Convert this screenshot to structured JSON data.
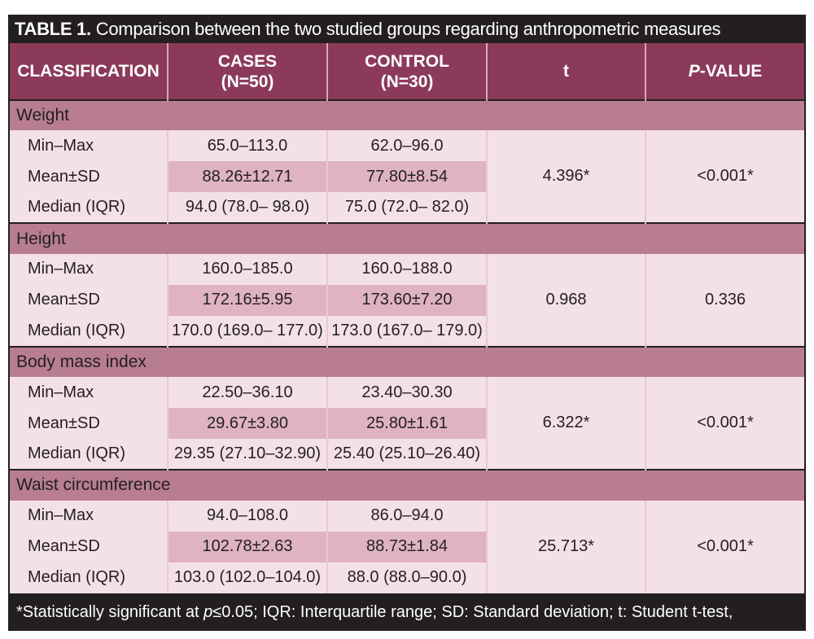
{
  "title": {
    "label": "TABLE 1.",
    "text": "Comparison between the two studied groups regarding anthropometric measures"
  },
  "header": {
    "classification": "CLASSIFICATION",
    "cases": "CASES",
    "cases_n": "(N=50)",
    "control": "CONTROL",
    "control_n": "(N=30)",
    "t": "t",
    "p_italic": "P",
    "p_rest": "-VALUE"
  },
  "sections": [
    {
      "name": "Weight",
      "t": "4.396*",
      "p": "<0.001*",
      "rows": [
        {
          "label": "Min–Max",
          "cases": "65.0–113.0",
          "control": "62.0–96.0"
        },
        {
          "label": "Mean±SD",
          "cases": "88.26±12.71",
          "control": "77.80±8.54"
        },
        {
          "label": "Median (IQR)",
          "cases": "94.0 (78.0– 98.0)",
          "control": "75.0 (72.0– 82.0)"
        }
      ]
    },
    {
      "name": "Height",
      "t": "0.968",
      "p": "0.336",
      "rows": [
        {
          "label": "Min–Max",
          "cases": "160.0–185.0",
          "control": "160.0–188.0"
        },
        {
          "label": "Mean±SD",
          "cases": "172.16±5.95",
          "control": "173.60±7.20"
        },
        {
          "label": "Median (IQR)",
          "cases": "170.0 (169.0– 177.0)",
          "control": "173.0 (167.0– 179.0)"
        }
      ]
    },
    {
      "name": "Body mass index",
      "t": "6.322*",
      "p": "<0.001*",
      "rows": [
        {
          "label": "Min–Max",
          "cases": "22.50–36.10",
          "control": "23.40–30.30"
        },
        {
          "label": "Mean±SD",
          "cases": "29.67±3.80",
          "control": "25.80±1.61"
        },
        {
          "label": "Median (IQR)",
          "cases": "29.35 (27.10–32.90)",
          "control": "25.40 (25.10–26.40)"
        }
      ]
    },
    {
      "name": "Waist circumference",
      "t": "25.713*",
      "p": "<0.001*",
      "rows": [
        {
          "label": "Min–Max",
          "cases": "94.0–108.0",
          "control": "86.0–94.0"
        },
        {
          "label": "Mean±SD",
          "cases": "102.78±2.63",
          "control": "88.73±1.84"
        },
        {
          "label": "Median (IQR)",
          "cases": "103.0 (102.0–104.0)",
          "control": "88.0 (88.0–90.0)"
        }
      ]
    }
  ],
  "footnote": {
    "part1": "*Statistically significant at ",
    "p_italic": "p",
    "part2": "≤0.05; IQR: Interquartile range; SD: Standard deviation; t: Student t-test,"
  },
  "colors": {
    "frame": "#231f20",
    "header": "#8b3a5a",
    "section": "#b87d92",
    "cell_light": "#f4e1e7",
    "cell_alt": "#dfb3c1"
  }
}
